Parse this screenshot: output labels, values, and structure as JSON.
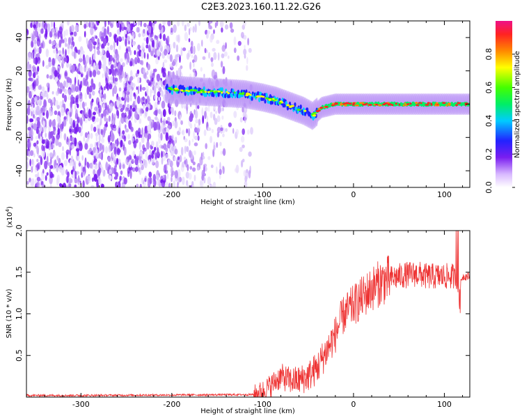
{
  "figure": {
    "title": "C2E3.2023.160.11.22.G26"
  },
  "chart_data": [
    {
      "type": "heatmap",
      "xlabel": "Height of straight line (km)",
      "ylabel": "Frequency (Hz)",
      "xlim": [
        -360,
        128
      ],
      "ylim": [
        -50,
        50
      ],
      "xticks": [
        "-300",
        "-200",
        "-100",
        "0",
        "100"
      ],
      "xtick_values": [
        -300,
        -200,
        -100,
        0,
        100
      ],
      "yticks": [
        "-40",
        "-20",
        "0",
        "20",
        "40"
      ],
      "ytick_values": [
        -40,
        -20,
        0,
        20,
        40
      ],
      "colorbar": {
        "label": "Normalized spectral amplitude",
        "range": [
          0.0,
          1.0
        ],
        "ticks": [
          "0.0",
          "0.2",
          "0.4",
          "0.6",
          "0.8"
        ],
        "tick_values": [
          0.0,
          0.2,
          0.4,
          0.6,
          0.8
        ]
      },
      "signal_track": {
        "x": [
          -205,
          -180,
          -150,
          -120,
          -100,
          -85,
          -70,
          -55,
          -45,
          -35,
          -20,
          0,
          50,
          100,
          128
        ],
        "frequency": [
          9,
          8,
          7,
          6,
          4,
          2,
          -1,
          -4,
          -7,
          -2,
          0,
          0,
          0,
          0,
          0
        ]
      }
    },
    {
      "type": "line",
      "xlabel": "Height of straight line (km)",
      "ylabel": "SNR (10 * v/v)",
      "multiplier": "(x10",
      "multiplier_exp": "4",
      "multiplier_close": ")",
      "xlim": [
        -360,
        128
      ],
      "ylim": [
        0,
        2.0
      ],
      "xticks": [
        "-300",
        "-200",
        "-100",
        "0",
        "100"
      ],
      "xtick_values": [
        -300,
        -200,
        -100,
        0,
        100
      ],
      "yticks": [
        "0.5",
        "1.0",
        "1.5",
        "2.0"
      ],
      "ytick_values": [
        0.5,
        1.0,
        1.5,
        2.0
      ],
      "series": [
        {
          "color": "#ee3333",
          "x": [
            -360,
            -300,
            -200,
            -110,
            -100,
            -90,
            -80,
            -70,
            -60,
            -50,
            -45,
            -40,
            -35,
            -30,
            -25,
            -20,
            -15,
            -10,
            0,
            10,
            20,
            30,
            40,
            50,
            60,
            70,
            80,
            90,
            100,
            110,
            115,
            120,
            128
          ],
          "y": [
            0.02,
            0.02,
            0.025,
            0.03,
            0.07,
            0.15,
            0.25,
            0.2,
            0.2,
            0.25,
            0.3,
            0.35,
            0.45,
            0.55,
            0.65,
            0.75,
            0.9,
            1.0,
            1.1,
            1.2,
            1.3,
            1.38,
            1.42,
            1.45,
            1.47,
            1.48,
            1.45,
            1.45,
            1.45,
            1.45,
            1.3,
            1.45,
            1.45
          ]
        }
      ]
    }
  ]
}
